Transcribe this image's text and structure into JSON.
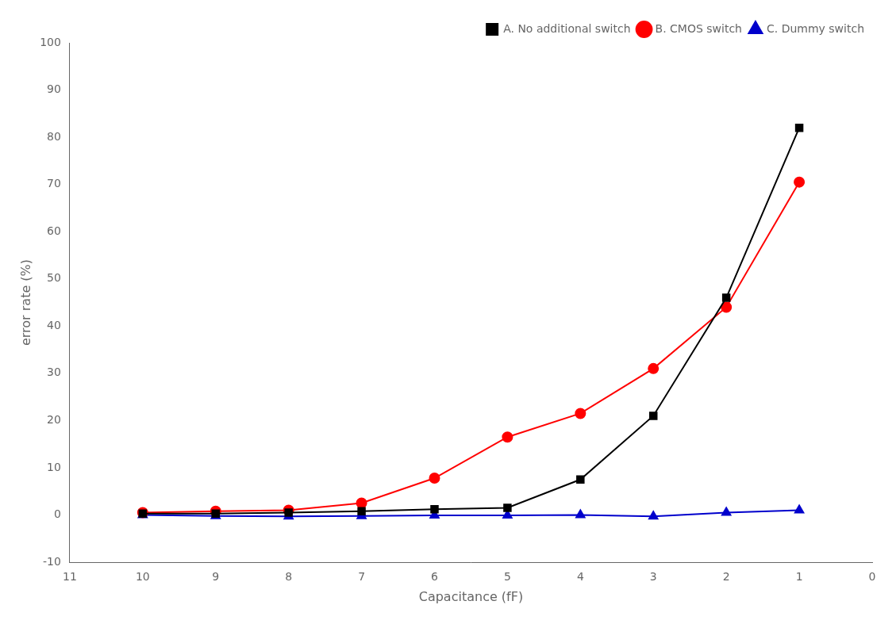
{
  "chart_data": {
    "type": "line",
    "x": [
      10,
      9,
      8,
      7,
      6,
      5,
      4,
      3,
      2,
      1
    ],
    "series": [
      {
        "name": "A. No additional switch",
        "color": "#000000",
        "marker": "square",
        "values": [
          0.3,
          0.3,
          0.5,
          0.8,
          1.2,
          1.5,
          7.5,
          21.0,
          46.0,
          82.0
        ]
      },
      {
        "name": "B. CMOS switch",
        "color": "#ff0000",
        "marker": "circle",
        "values": [
          0.5,
          0.8,
          1.0,
          2.5,
          7.8,
          16.5,
          21.5,
          31.0,
          44.0,
          70.5
        ]
      },
      {
        "name": "C. Dummy switch",
        "color": "#0000cc",
        "marker": "triangle",
        "values": [
          0.0,
          -0.2,
          -0.3,
          -0.2,
          -0.1,
          -0.1,
          0.0,
          -0.3,
          0.5,
          1.0
        ]
      }
    ],
    "xlabel": "Capacitance (fF)",
    "ylabel": "error rate (%)",
    "xlim": [
      11,
      0
    ],
    "ylim": [
      -10,
      100
    ],
    "xticks": [
      11,
      10,
      9,
      8,
      7,
      6,
      5,
      4,
      3,
      2,
      1,
      0
    ],
    "yticks": [
      -10,
      0,
      10,
      20,
      30,
      40,
      50,
      60,
      70,
      80,
      90,
      100
    ],
    "legend": "upper right",
    "grid": false
  }
}
